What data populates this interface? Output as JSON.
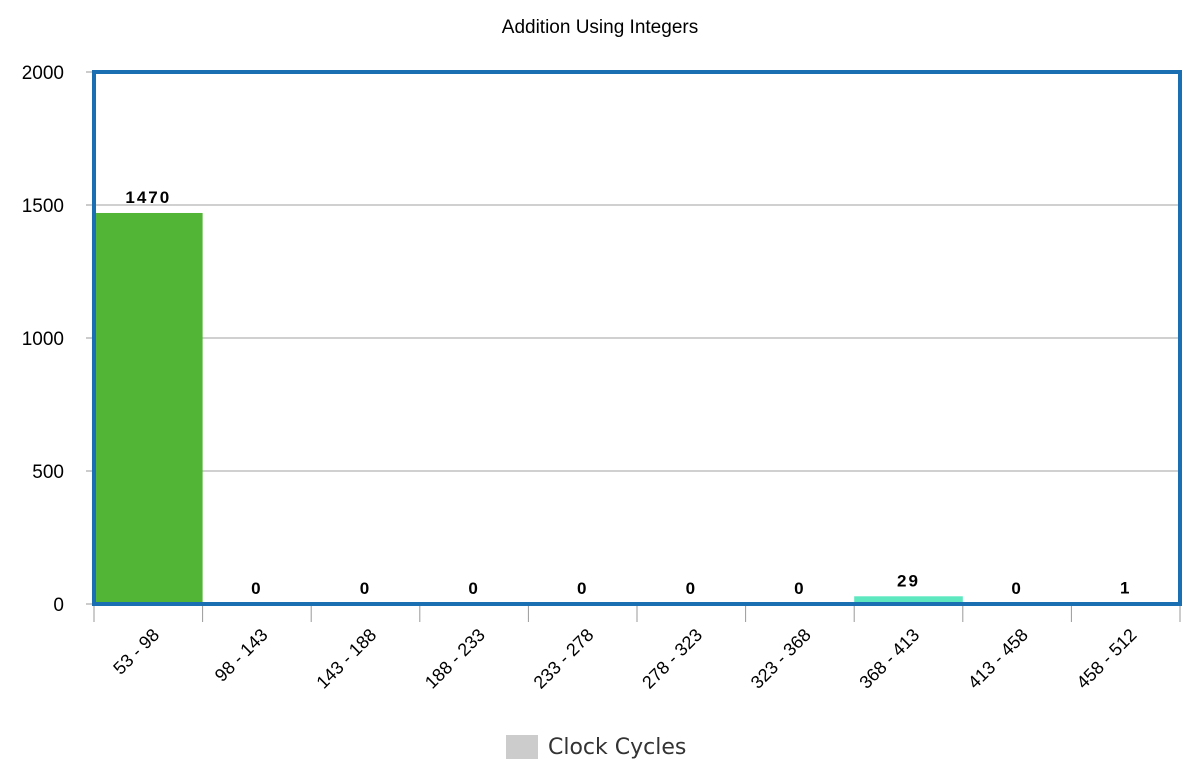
{
  "chart_data": {
    "type": "bar",
    "title": "Addition Using Integers",
    "xlabel": "",
    "ylabel": "",
    "categories": [
      "53 - 98",
      "98 - 143",
      "143 - 188",
      "188 - 233",
      "233 - 278",
      "278 - 323",
      "323 - 368",
      "368 - 413",
      "413 - 458",
      "458 - 512"
    ],
    "values": [
      1470,
      0,
      0,
      0,
      0,
      0,
      0,
      29,
      0,
      1
    ],
    "data_labels": [
      "1470",
      "0",
      "0",
      "0",
      "0",
      "0",
      "0",
      "29",
      "0",
      "1"
    ],
    "bar_colors": [
      "#52b536",
      "#cccccc",
      "#cccccc",
      "#cccccc",
      "#cccccc",
      "#cccccc",
      "#cccccc",
      "#5ee8c0",
      "#cccccc",
      "#cccccc"
    ],
    "ylim": [
      0,
      2000
    ],
    "yticks": [
      0,
      500,
      1000,
      1500,
      2000
    ],
    "ytick_labels": [
      "0",
      "500",
      "1000",
      "1500",
      "2000"
    ],
    "grid": true,
    "legend": {
      "position": "bottom",
      "entries": [
        {
          "label": "Clock Cycles",
          "color": "#cccccc"
        }
      ]
    },
    "colors": {
      "frame": "#1a6fb3",
      "grid": "#c0c0c0",
      "axis": "#999999",
      "text": "#000000"
    }
  }
}
